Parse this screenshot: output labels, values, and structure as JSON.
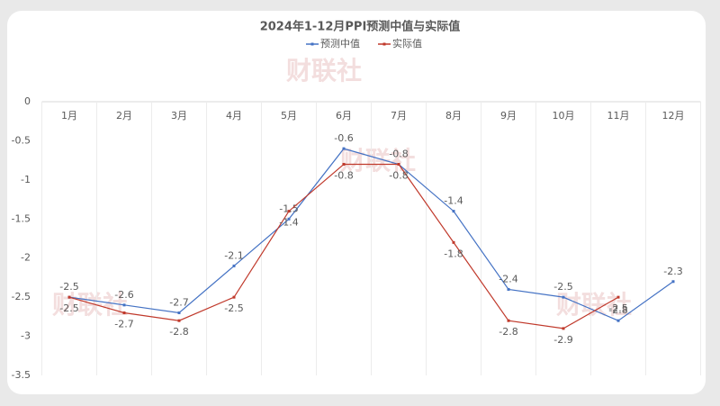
{
  "chart_data": {
    "type": "line",
    "title": "2024年1-12月PPI预测中值与实际值",
    "watermark": "财联社",
    "categories": [
      "1月",
      "2月",
      "3月",
      "4月",
      "5月",
      "6月",
      "7月",
      "8月",
      "9月",
      "10月",
      "11月",
      "12月"
    ],
    "series": [
      {
        "name": "预测中值",
        "color": "#4472c4",
        "values": [
          -2.5,
          -2.6,
          -2.7,
          -2.1,
          -1.5,
          -0.6,
          -0.8,
          -1.4,
          -2.4,
          -2.5,
          -2.8,
          -2.3
        ]
      },
      {
        "name": "实际值",
        "color": "#c0392b",
        "values": [
          -2.5,
          -2.7,
          -2.8,
          -2.5,
          -1.4,
          -0.8,
          -0.8,
          -1.8,
          -2.8,
          -2.9,
          -2.5,
          null
        ]
      }
    ],
    "ylim": [
      -3.5,
      0
    ],
    "yticks": [
      0,
      -0.5,
      -1,
      -1.5,
      -2,
      -2.5,
      -3,
      -3.5
    ],
    "grid": true,
    "legend": "top"
  }
}
